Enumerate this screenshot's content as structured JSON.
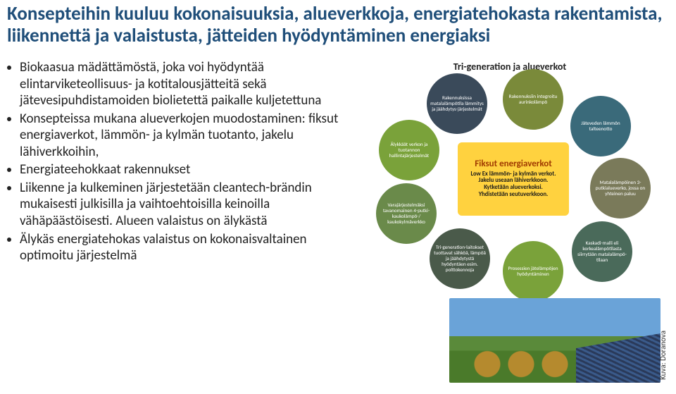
{
  "title": "Konsepteihin kuuluu kokonaisuuksia, alueverkkoja, energiatehokasta rakentamista, liikennettä ja valaistusta, jätteiden hyödyntäminen energiaksi",
  "bullets": [
    "Biokaasua mädättämöstä, joka voi hyödyntää elintarviketeollisuus- ja kotitalousjätteitä sekä jätevesipuhdistamoiden biolietettä paikalle kuljetettuna",
    "Konsepteissa mukana alueverkojen muodostaminen: fiksut energiaverkot, lämmön- ja kylmän tuotanto, jakelu lähiverkkoihin,",
    "Energiateehokkaat rakennukset",
    "Liikenne ja kulkeminen järjestetään cleantech-brändin mukaisesti julkisilla ja vaihtoehtoisilla keinoilla vähäpäästöisesti. Alueen valaistus on älykästä",
    "Älykäs energiatehokas valaistus on kokonaisvaltainen optimoitu järjestelmä"
  ],
  "diagram": {
    "title": "Tri-generation ja alueverkot",
    "center": {
      "heading": "Fiksut energiaverkot",
      "lines": [
        "Low Ex lämmön- ja kylmän verkot.",
        "Jakelu useaan lähiverkkoon.",
        "Kytketään alueverkoksi.",
        "Yhdistetään seutuverkkoon."
      ]
    },
    "bubbles": [
      "Älykkäät verkon ja tuotannon hallintajärjestelmät",
      "Rakennuksissa matalalämpötila lämmitys ja jäähdytys-järjestelmät",
      "Rakennuksiin integroitu aurinkolämpö",
      "Jäteveden lämmön talteenotto",
      "Matalalämpöinen 3-putkialueverko, jossa on yhteinen paluu",
      "Kaskadi-malli eli korkealämpötilasta siirrytään matalalämpö-tilaan",
      "Prosessien jätelämpöjen hyödyntäminen",
      "Tri-generation-laitokset tuottavat sähköä, lämpöä ja jäähdytystä hyödyntäen esim. polttokennoja",
      "Varajärjestelmäksi tavanomainen 4-putki- kaukolämpö-/ kaukokylmäverkko"
    ],
    "bubble_colors": [
      "#7aa23a",
      "#3a4a5a",
      "#7a8a3a",
      "#3a6a7a",
      "#7a7a5a",
      "#4a6a5a",
      "#7aa23a",
      "#4a5a4a",
      "#6a8a4a"
    ],
    "center_bg": "#ffd23f"
  },
  "photo_caption": "Kuva: Doranova",
  "colors": {
    "title": "#1f4e79",
    "body_text": "#222222",
    "background": "#ffffff"
  },
  "typography": {
    "title_fontsize_pt": 20,
    "body_fontsize_pt": 14,
    "diagram_title_pt": 11,
    "bubble_text_pt": 5.5
  }
}
